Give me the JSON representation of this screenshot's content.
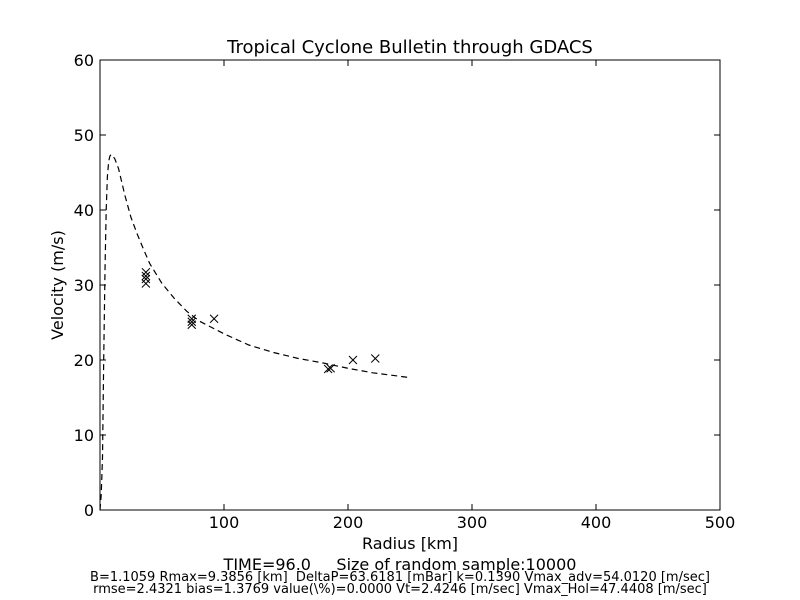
{
  "chart_data": {
    "type": "scatter",
    "title": "Tropical Cyclone Bulletin through GDACS",
    "xlabel": "Radius [km]",
    "ylabel": "Velocity (m/s)",
    "xlim": [
      0,
      500
    ],
    "ylim": [
      0,
      60
    ],
    "x_ticks": [
      "100",
      "200",
      "300",
      "400",
      "500"
    ],
    "y_ticks": [
      "0",
      "10",
      "20",
      "30",
      "40",
      "50",
      "60"
    ],
    "grid": false,
    "legend": "none",
    "points": [
      {
        "x": 37,
        "y": 30.2
      },
      {
        "x": 37,
        "y": 30.8
      },
      {
        "x": 37,
        "y": 31.2
      },
      {
        "x": 37,
        "y": 31.7
      },
      {
        "x": 74,
        "y": 24.7
      },
      {
        "x": 74,
        "y": 25.1
      },
      {
        "x": 74,
        "y": 25.5
      },
      {
        "x": 92,
        "y": 25.5
      },
      {
        "x": 184,
        "y": 18.8
      },
      {
        "x": 186,
        "y": 18.9
      },
      {
        "x": 204,
        "y": 20.0
      },
      {
        "x": 222,
        "y": 20.2
      }
    ],
    "model_curve": [
      {
        "x": 0,
        "y": 0
      },
      {
        "x": 1,
        "y": 2
      },
      {
        "x": 2,
        "y": 7
      },
      {
        "x": 3,
        "y": 20
      },
      {
        "x": 4,
        "y": 32
      },
      {
        "x": 5,
        "y": 40
      },
      {
        "x": 6,
        "y": 44.5
      },
      {
        "x": 7,
        "y": 46.5
      },
      {
        "x": 8,
        "y": 47.2
      },
      {
        "x": 9,
        "y": 47.4
      },
      {
        "x": 10,
        "y": 47.3
      },
      {
        "x": 12,
        "y": 46.8
      },
      {
        "x": 15,
        "y": 45.5
      },
      {
        "x": 20,
        "y": 42
      },
      {
        "x": 25,
        "y": 39
      },
      {
        "x": 30,
        "y": 36.8
      },
      {
        "x": 35,
        "y": 34.8
      },
      {
        "x": 40,
        "y": 32.9
      },
      {
        "x": 50,
        "y": 30.2
      },
      {
        "x": 60,
        "y": 28.2
      },
      {
        "x": 70,
        "y": 26.5
      },
      {
        "x": 80,
        "y": 25.2
      },
      {
        "x": 100,
        "y": 23.5
      },
      {
        "x": 120,
        "y": 22.0
      },
      {
        "x": 140,
        "y": 21.0
      },
      {
        "x": 160,
        "y": 20.2
      },
      {
        "x": 180,
        "y": 19.6
      },
      {
        "x": 200,
        "y": 18.9
      },
      {
        "x": 220,
        "y": 18.3
      },
      {
        "x": 248,
        "y": 17.7
      }
    ],
    "marker_color": "#000000",
    "line_color": "#000000"
  },
  "captions": {
    "line1": "TIME=96.0     Size of random sample:10000",
    "line2": "B=1.1059 Rmax=9.3856 [km]  DeltaP=63.6181 [mBar] k=0.1390 Vmax_adv=54.0120 [m/sec]",
    "line3": "rmse=2.4321 bias=1.3769 value(\\%)=0.0000 Vt=2.4246 [m/sec] Vmax_Hol=47.4408 [m/sec]"
  }
}
